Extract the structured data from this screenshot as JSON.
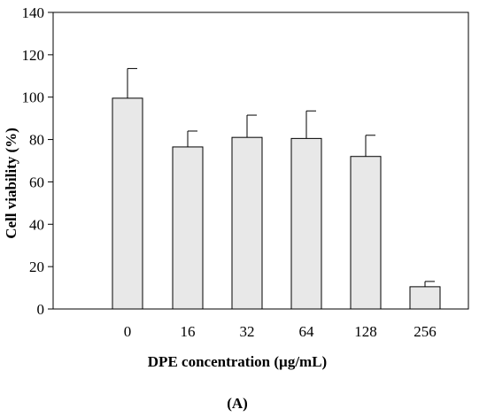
{
  "chart_data": {
    "type": "bar",
    "categories": [
      "0",
      "16",
      "32",
      "64",
      "128",
      "256"
    ],
    "values": [
      99.5,
      76.5,
      81,
      80.5,
      72,
      10.5
    ],
    "errors": [
      14,
      7.5,
      10.5,
      13,
      10,
      2.5
    ],
    "xlabel": "DPE concentration (µg/mL)",
    "ylabel": "Cell viability (%)",
    "ylim": [
      0,
      140
    ],
    "yticks": [
      "0",
      "20",
      "40",
      "60",
      "80",
      "100",
      "120",
      "140"
    ],
    "panel_label": "(A)",
    "grid": false,
    "bar_color": "#e8e8e8",
    "edge_color": "#000000"
  }
}
